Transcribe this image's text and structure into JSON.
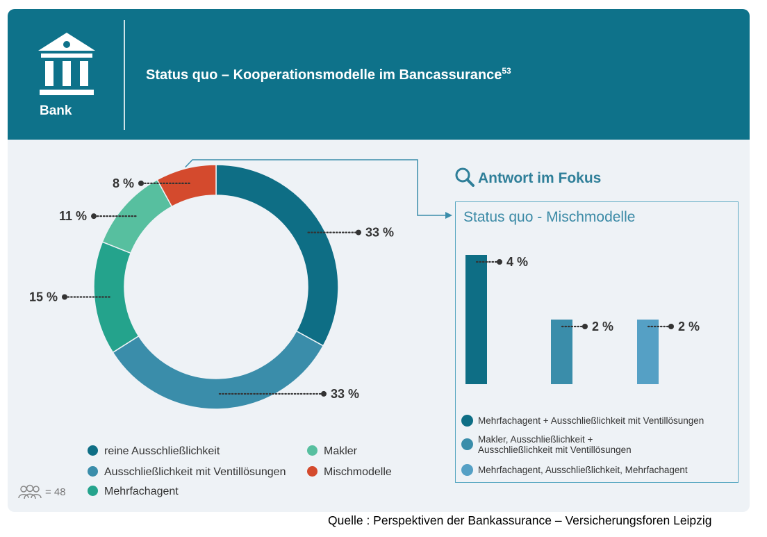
{
  "header": {
    "title": "Status quo – Kooperationsmodelle im Bancassurance",
    "footnote": "53",
    "icon_label": "Bank",
    "icon": "bank-building-icon"
  },
  "colors": {
    "header_bg": "#0e728a",
    "reine": "#0e6e85",
    "ventil": "#3a8daa",
    "mehrfach": "#24a38c",
    "makler": "#57bf9f",
    "misch": "#d44a2d",
    "bar1": "#0e6e85",
    "bar2": "#3a8daa",
    "bar3": "#55a0c5"
  },
  "chart_data": [
    {
      "type": "pie",
      "variant": "donut",
      "segments": [
        {
          "name": "reine Ausschließlichkeit",
          "value": 33,
          "label": "33 %"
        },
        {
          "name": "Ausschließlichkeit mit Ventillösungen",
          "value": 33,
          "label": "33 %"
        },
        {
          "name": "Mehrfachagent",
          "value": 15,
          "label": "15 %"
        },
        {
          "name": "Makler",
          "value": 11,
          "label": "11 %"
        },
        {
          "name": "Mischmodelle",
          "value": 8,
          "label": "8 %"
        }
      ],
      "legend": {
        "position": "bottom",
        "items": [
          "reine Ausschließlichkeit",
          "Makler",
          "Ausschließlichkeit mit Ventillösungen",
          "Mischmodelle",
          "Mehrfachagent"
        ]
      },
      "sample_size": "= 48"
    },
    {
      "type": "bar",
      "title": "Status quo - Mischmodelle",
      "categories": [
        "Mehrfachagent + Ausschließlichkeit mit Ventillösungen",
        "Makler, Ausschließlichkeit + Ausschließlichkeit mit Ventillösungen",
        "Mehrfachagent, Ausschließlichkeit, Mehrfachagent"
      ],
      "legend_lines": [
        [
          "Mehrfachagent + Ausschließlichkeit mit Ventillösungen"
        ],
        [
          "Makler, Ausschließlichkeit +",
          "Ausschließlichkeit mit Ventillösungen"
        ],
        [
          "Mehrfachagent, Ausschließlichkeit, Mehrfachagent"
        ]
      ],
      "values": [
        4,
        2,
        2
      ],
      "labels": [
        "4 %",
        "2 %",
        "2 %"
      ],
      "ylim": [
        0,
        4
      ]
    }
  ],
  "focus": {
    "title": "Antwort im Fokus",
    "icon": "magnifier-icon"
  },
  "source": "Quelle : Perspektiven der Bankassurance – Versicherungsforen Leipzig"
}
